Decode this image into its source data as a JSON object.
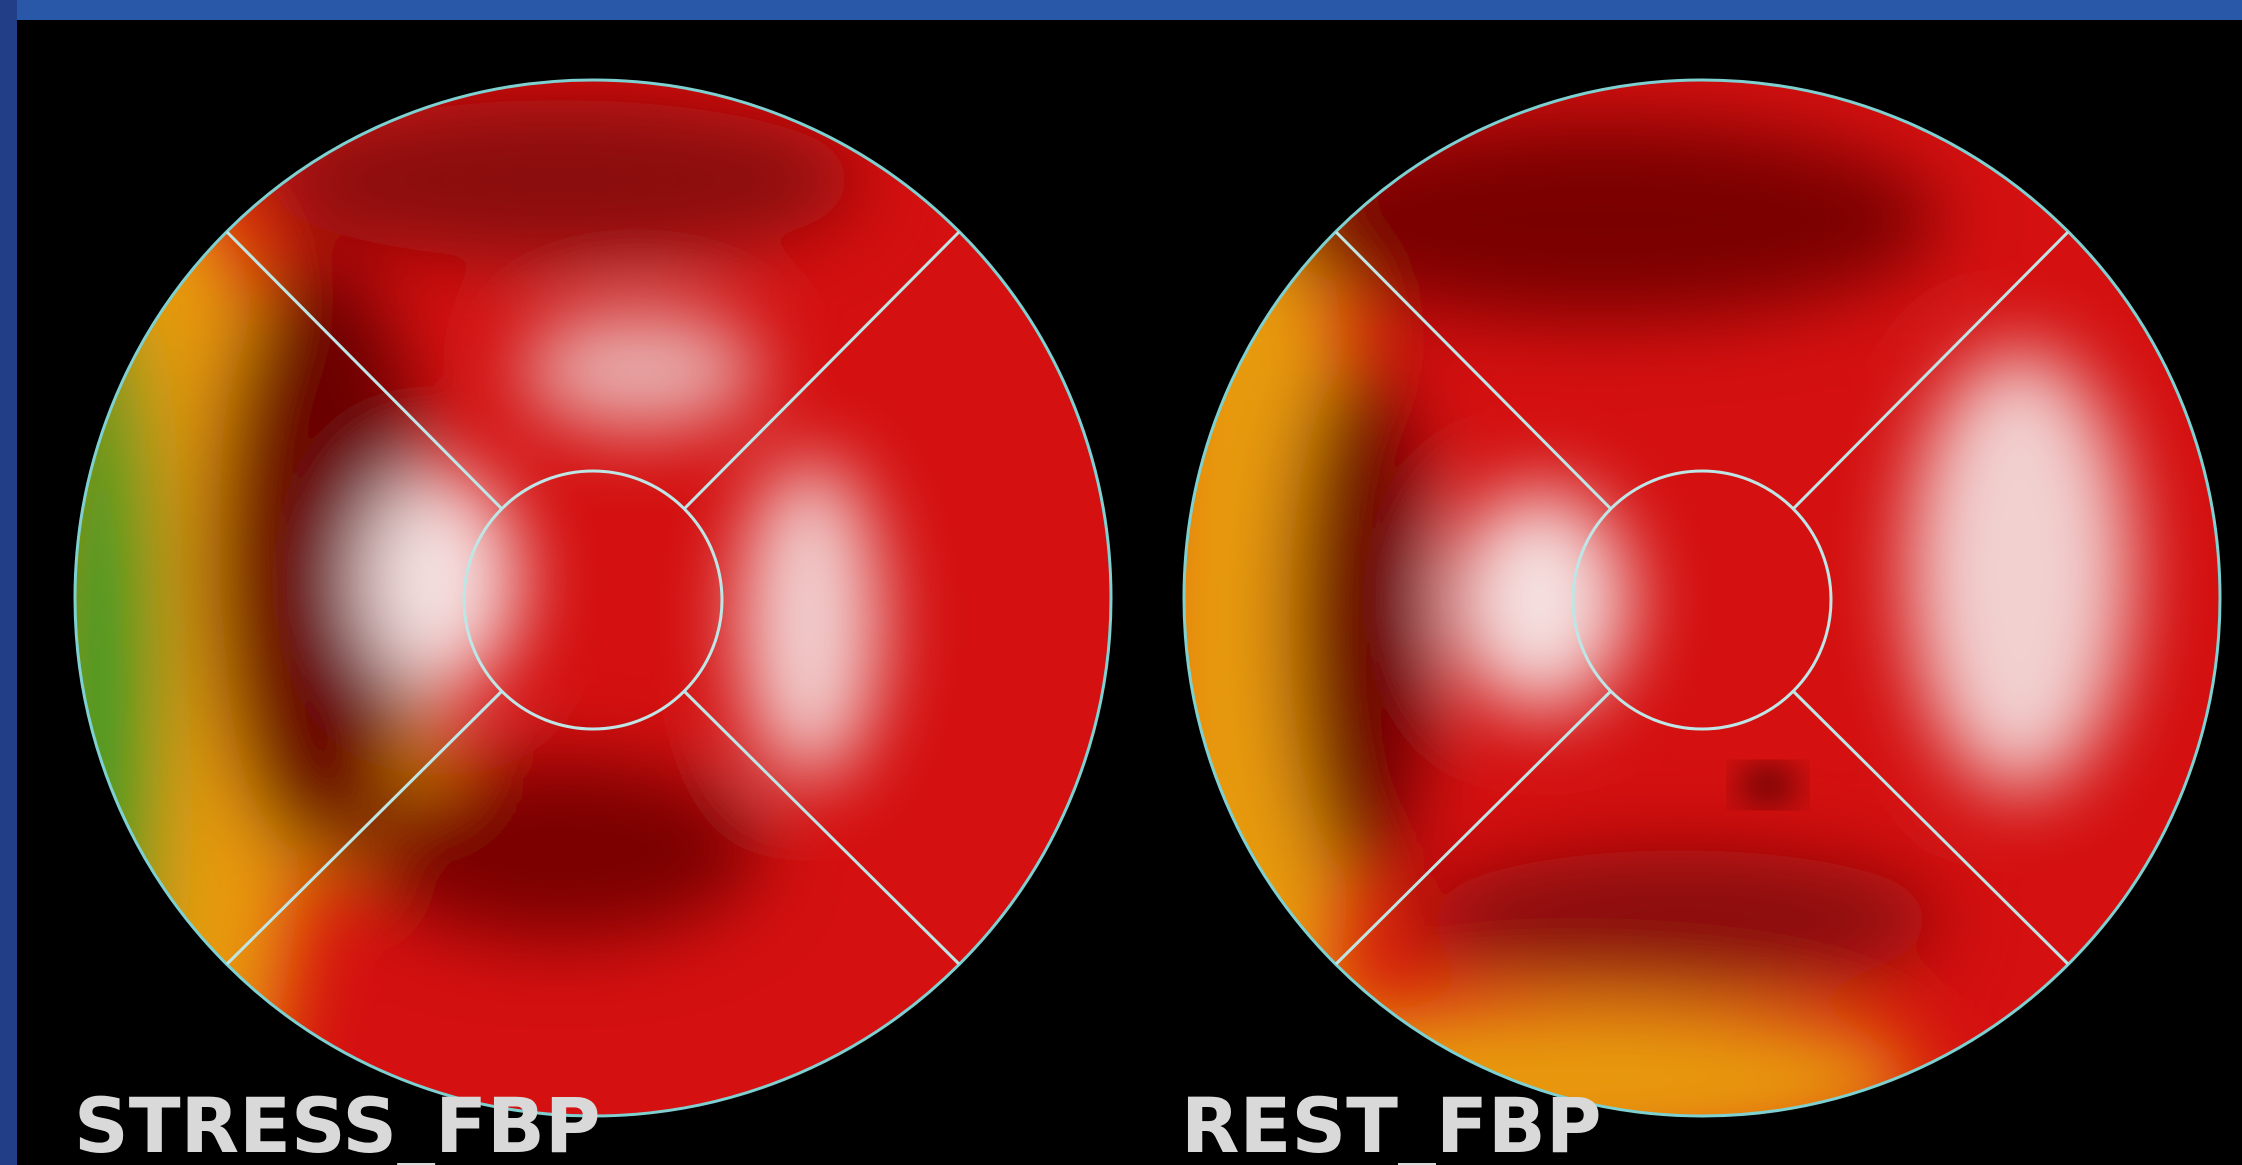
{
  "panels": [
    {
      "label": "STRESS_FBP"
    },
    {
      "label": "REST_FBP"
    }
  ]
}
